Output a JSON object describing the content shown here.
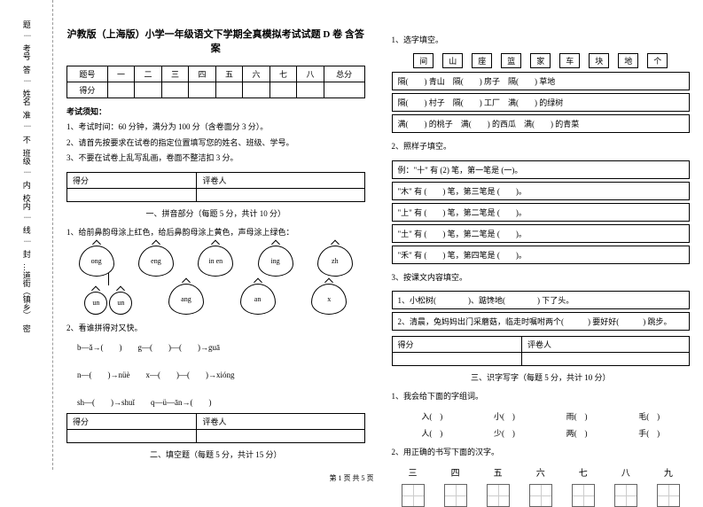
{
  "binding": {
    "labels": [
      "考号",
      "姓名",
      "班级",
      "校内",
      "…道街（镇乡）"
    ],
    "marks": [
      "题",
      "答",
      "准",
      "不",
      "内",
      "线",
      "封",
      "密"
    ]
  },
  "title": "沪教版（上海版）小学一年级语文下学期全真模拟考试试题 D 卷 含答案",
  "score_headers": [
    "题号",
    "一",
    "二",
    "三",
    "四",
    "五",
    "六",
    "七",
    "八",
    "总分"
  ],
  "score_row": "得分",
  "notice_hd": "考试须知：",
  "rules": [
    "1、考试时间：60 分钟，满分为 100 分（含卷面分 3 分）。",
    "2、请首先按要求在试卷的指定位置填写您的姓名、班级、学号。",
    "3、不要在试卷上乱写乱画，卷面不整洁扣 3 分。"
  ],
  "st": {
    "a": "得分",
    "b": "评卷人"
  },
  "part1_title": "一、拼音部分（每题 5 分，共计 10 分）",
  "q1_1": "1、给前鼻韵母涂上红色，给后鼻韵母涂上黄色，声母涂上绿色：",
  "fruits1": [
    "ong",
    "eng",
    "in en",
    "ing",
    "zh"
  ],
  "fruits2": [
    "un",
    "un",
    "ang",
    "an",
    "x"
  ],
  "q1_2": "2、看谁拼得对又快。",
  "pinyin_lines": [
    "b—ǎ→(　　)　　g—(　　)—(　　)→guā",
    "n—(　　)→nüè　　x—(　　)—(　　)→xióng",
    "sh—(　　)→shuǐ　　q—ü—ān→(　　)"
  ],
  "part2_title": "二、填空题（每题 5 分，共计 15 分）",
  "q2_1": "1、选字填空。",
  "chars": [
    "间",
    "山",
    "座",
    "篮",
    "家",
    "车",
    "块",
    "地",
    "个"
  ],
  "fill_rows": [
    [
      "隔(　　) 青山",
      "隔(　　) 房子",
      "隔(　　) 草地"
    ],
    [
      "隔(　　) 村子",
      "隔(　　) 工厂",
      "满(　　) 的绿树"
    ],
    [
      "满(　　) 的桃子",
      "满(　　) 的西瓜",
      "满(　　) 的青菜"
    ]
  ],
  "q2_2": "2、照样子填空。",
  "example": "例：\"十\" 有 (2) 笔，第一笔是 (一)。",
  "strokes": [
    "\"木\" 有 (　　) 笔，第三笔是 (　　)。",
    "\"上\" 有 (　　) 笔，第二笔是 (　　)。",
    "\"土\" 有 (　　) 笔，第二笔是 (　　)。",
    "\"禾\" 有 (　　) 笔，第四笔是 (　　)。"
  ],
  "q2_3": "3、按课文内容填空。",
  "content_fill": [
    "1、小松树(　　　　)、踮馋地(　　　　) 下了头。",
    "2、清晨，兔妈妈出门采蘑菇，临走时嘱咐两个(　　　) 要好好(　　　) 跳步。"
  ],
  "part3_title": "三、识字写字（每题 5 分，共计 10 分）",
  "q3_1": "1、我会给下面的字组词。",
  "words_row1": [
    "入(　)",
    "小(　)",
    "雨(　)",
    "毛(　)"
  ],
  "words_row2": [
    "人(　)",
    "少(　)",
    "两(　)",
    "手(　)"
  ],
  "q3_2": "2、用正确的书写下面的汉字。",
  "write_chars": [
    "三",
    "四",
    "五",
    "六",
    "七",
    "八",
    "九"
  ],
  "footer": "第 1 页 共 5 页"
}
